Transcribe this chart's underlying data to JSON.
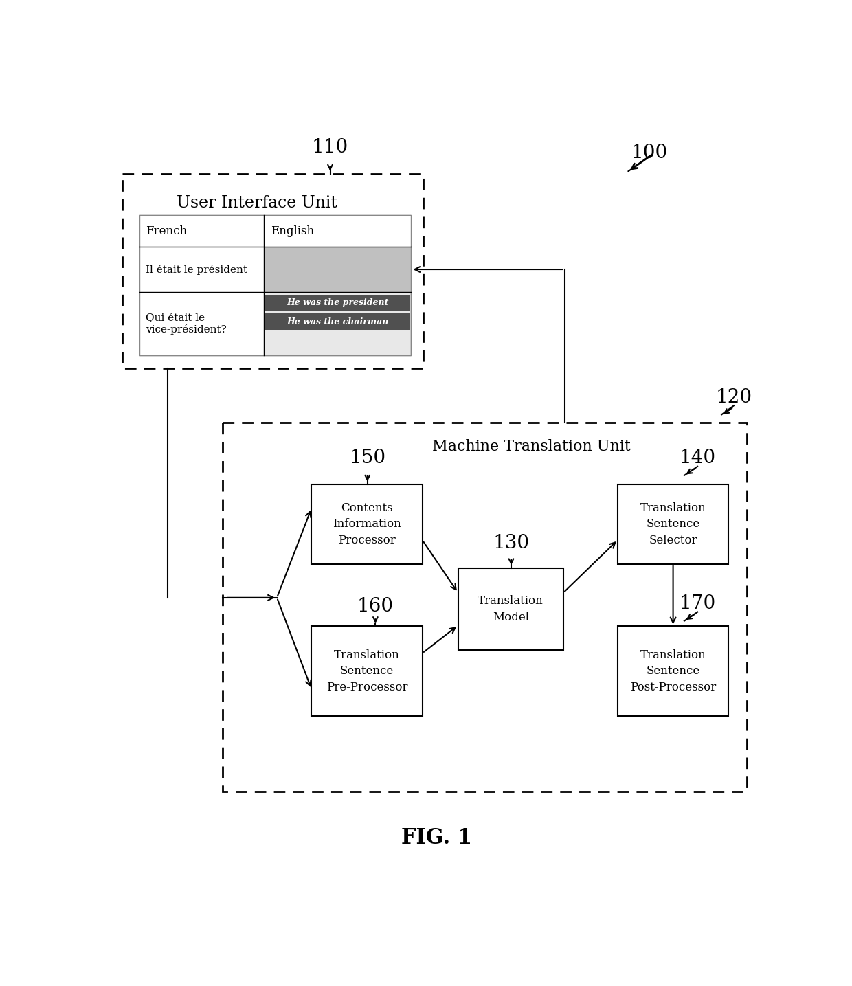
{
  "title": "FIG. 1",
  "bg_color": "#ffffff",
  "label_100": "100",
  "label_110": "110",
  "label_120": "120",
  "label_130": "130",
  "label_140": "140",
  "label_150": "150",
  "label_160": "160",
  "label_170": "170",
  "ui_unit_label": "User Interface Unit",
  "mt_unit_label": "Machine Translation Unit",
  "box_150_label": "Contents\nInformation\nProcessor",
  "box_160_label": "Translation\nSentence\nPre-Processor",
  "box_130_label": "Translation\nModel",
  "box_140_label": "Translation\nSentence\nSelector",
  "box_170_label": "Translation\nSentence\nPost-Processor",
  "french_label": "French",
  "english_label": "English",
  "french_text1": "Il était le président",
  "french_text2": "Qui était le\nvice-président?",
  "english_text1": "He was the president",
  "english_text2": "He was the chairman"
}
